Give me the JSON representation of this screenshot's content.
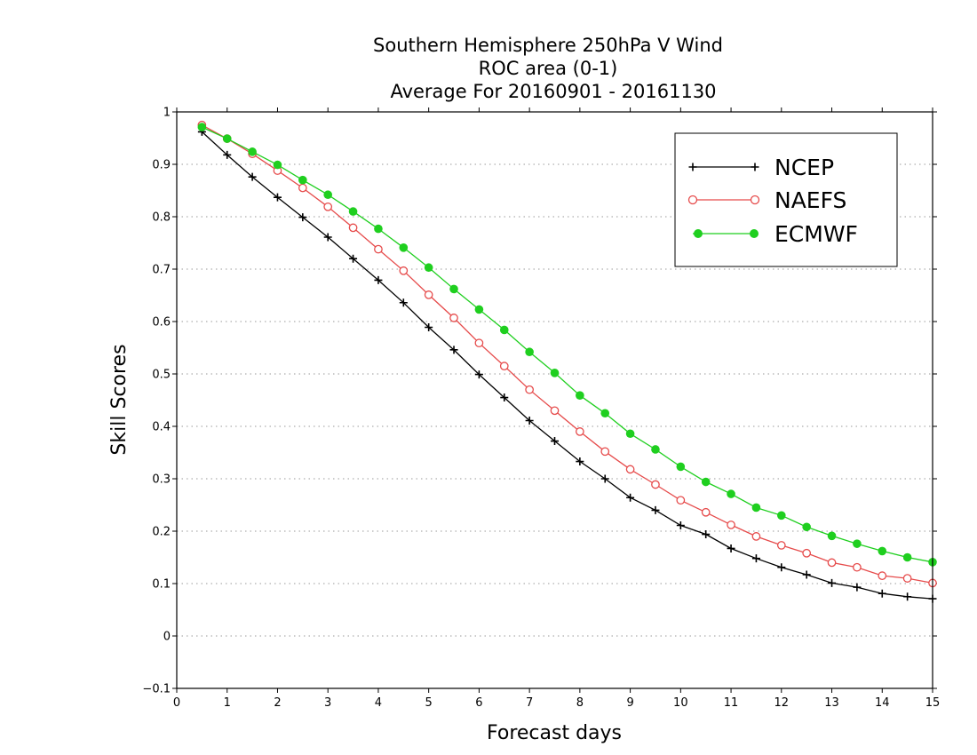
{
  "chart_data": {
    "type": "line",
    "title": [
      "Southern Hemisphere 250hPa V Wind",
      "ROC area (0-1)",
      "Average For 20160901 - 20161130"
    ],
    "xlabel": "Forecast days",
    "ylabel": "Skill Scores",
    "xlim": [
      0,
      15
    ],
    "ylim": [
      -0.1,
      1
    ],
    "xticks": [
      "0",
      "1",
      "2",
      "3",
      "4",
      "5",
      "6",
      "7",
      "8",
      "9",
      "10",
      "11",
      "12",
      "13",
      "14",
      "15"
    ],
    "yticks": [
      "-0.1",
      "0",
      "0.1",
      "0.2",
      "0.3",
      "0.4",
      "0.5",
      "0.6",
      "0.7",
      "0.8",
      "0.9",
      "1"
    ],
    "grid": "horizontal dotted",
    "legend_position": "top-right",
    "x": [
      0.5,
      1,
      1.5,
      2,
      2.5,
      3,
      3.5,
      4,
      4.5,
      5,
      5.5,
      6,
      6.5,
      7,
      7.5,
      8,
      8.5,
      9,
      9.5,
      10,
      10.5,
      11,
      11.5,
      12,
      12.5,
      13,
      13.5,
      14,
      14.5,
      15
    ],
    "series": [
      {
        "name": "NCEP",
        "color": "#000000",
        "marker": "plus",
        "values": [
          0.962,
          0.918,
          0.876,
          0.837,
          0.799,
          0.761,
          0.72,
          0.679,
          0.636,
          0.589,
          0.546,
          0.499,
          0.455,
          0.411,
          0.372,
          0.333,
          0.3,
          0.264,
          0.24,
          0.211,
          0.194,
          0.167,
          0.148,
          0.131,
          0.117,
          0.101,
          0.093,
          0.081,
          0.075,
          0.071
        ]
      },
      {
        "name": "NAEFS",
        "color": "#e64b4b",
        "marker": "open-circle",
        "values": [
          0.975,
          0.949,
          0.92,
          0.888,
          0.855,
          0.819,
          0.779,
          0.738,
          0.697,
          0.651,
          0.607,
          0.559,
          0.515,
          0.47,
          0.43,
          0.39,
          0.352,
          0.318,
          0.289,
          0.259,
          0.236,
          0.212,
          0.19,
          0.173,
          0.158,
          0.14,
          0.131,
          0.115,
          0.11,
          0.101
        ]
      },
      {
        "name": "ECMWF",
        "color": "#1fcf1f",
        "marker": "filled-circle",
        "values": [
          0.971,
          0.949,
          0.924,
          0.899,
          0.87,
          0.842,
          0.81,
          0.777,
          0.741,
          0.703,
          0.662,
          0.623,
          0.584,
          0.542,
          0.502,
          0.459,
          0.425,
          0.386,
          0.356,
          0.323,
          0.294,
          0.271,
          0.245,
          0.23,
          0.208,
          0.191,
          0.176,
          0.162,
          0.15,
          0.141
        ]
      }
    ]
  }
}
